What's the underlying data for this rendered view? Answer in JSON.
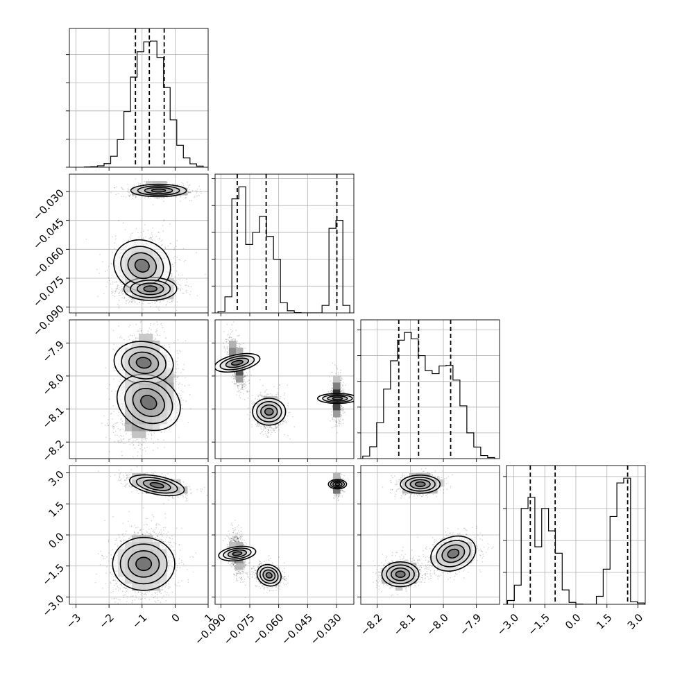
{
  "chart_data": {
    "type": "corner",
    "grid": true,
    "ndim": 4,
    "parameters": [
      {
        "range": [
          -3.2,
          1.0
        ],
        "ticks": [
          -3,
          -2,
          -1,
          0,
          1
        ],
        "tick_labels": [
          "−3",
          "−2",
          "−1",
          "0",
          "1"
        ],
        "quantiles": [
          -1.2,
          -0.78,
          -0.33
        ],
        "histogram": {
          "type": "step",
          "bins": [
            -2.75,
            -2.55,
            -2.35,
            -2.15,
            -1.95,
            -1.75,
            -1.55,
            -1.35,
            -1.15,
            -0.95,
            -0.75,
            -0.55,
            -0.35,
            -0.15,
            0.05,
            0.25,
            0.45,
            0.65,
            0.85
          ],
          "counts": [
            1,
            2,
            5,
            13,
            39,
            98,
            198,
            320,
            410,
            445,
            448,
            390,
            283,
            168,
            78,
            33,
            12,
            4,
            1
          ]
        }
      },
      {
        "range": [
          -0.093,
          -0.021
        ],
        "ticks": [
          -0.09,
          -0.075,
          -0.06,
          -0.045,
          -0.03
        ],
        "tick_labels": [
          "−0.090",
          "−0.075",
          "−0.060",
          "−0.045",
          "−0.030"
        ],
        "quantiles": [
          -0.0815,
          -0.0665,
          -0.0298
        ],
        "histogram": {
          "type": "step",
          "bins": [
            -0.0915,
            -0.0879,
            -0.0843,
            -0.0807,
            -0.0771,
            -0.0735,
            -0.0699,
            -0.0663,
            -0.0627,
            -0.0591,
            -0.0555,
            -0.0519,
            -0.0483,
            -0.0447,
            -0.0411,
            -0.0375,
            -0.0339,
            -0.0303,
            -0.0267,
            -0.0231
          ],
          "counts": [
            5,
            60,
            425,
            470,
            255,
            300,
            360,
            285,
            200,
            38,
            8,
            1,
            0,
            0,
            0,
            28,
            315,
            345,
            28
          ]
        }
      },
      {
        "range": [
          -8.25,
          -7.83
        ],
        "ticks": [
          -8.2,
          -8.1,
          -8.0,
          -7.9
        ],
        "tick_labels": [
          "−8.2",
          "−8.1",
          "−8.0",
          "−7.9"
        ],
        "quantiles": [
          -8.135,
          -8.075,
          -7.978
        ],
        "histogram": {
          "type": "step",
          "bins": [
            -8.244,
            -8.223,
            -8.202,
            -8.181,
            -8.16,
            -8.139,
            -8.118,
            -8.097,
            -8.076,
            -8.055,
            -8.034,
            -8.013,
            -7.992,
            -7.971,
            -7.95,
            -7.929,
            -7.908,
            -7.887,
            -7.866,
            -7.845
          ],
          "counts": [
            10,
            46,
            140,
            270,
            380,
            460,
            490,
            465,
            400,
            342,
            330,
            360,
            362,
            305,
            205,
            100,
            45,
            12,
            4
          ]
        }
      },
      {
        "range": [
          -3.35,
          3.35
        ],
        "ticks": [
          -3.0,
          -1.5,
          0.0,
          1.5,
          3.0
        ],
        "tick_labels": [
          "−3.0",
          "−1.5",
          "0.0",
          "1.5",
          "3.0"
        ],
        "quantiles": [
          -2.2,
          -1.0,
          2.5
        ],
        "histogram": {
          "type": "step",
          "bins": [
            -3.3,
            -2.97,
            -2.64,
            -2.31,
            -1.98,
            -1.65,
            -1.32,
            -0.99,
            -0.66,
            -0.33,
            0.0,
            0.33,
            0.66,
            0.99,
            1.32,
            1.65,
            1.98,
            2.31,
            2.64,
            2.97,
            3.3
          ],
          "counts": [
            12,
            60,
            300,
            335,
            180,
            300,
            230,
            160,
            45,
            6,
            1,
            0,
            0,
            25,
            110,
            275,
            380,
            395,
            8,
            4
          ]
        }
      }
    ],
    "pairs": [
      {
        "row": 1,
        "col": 0,
        "clusters": [
          {
            "mean": [
              -0.5,
              -0.0295
            ],
            "sd": [
              0.42,
              0.0016
            ],
            "rho": 0.0,
            "weight": 0.3
          },
          {
            "mean": [
              -1.0,
              -0.0685
            ],
            "sd": [
              0.38,
              0.0075
            ],
            "rho": 0.15,
            "weight": 0.32
          },
          {
            "mean": [
              -0.75,
              -0.0805
            ],
            "sd": [
              0.4,
              0.003
            ],
            "rho": 0.0,
            "weight": 0.38
          }
        ]
      },
      {
        "row": 2,
        "col": 0,
        "clusters": [
          {
            "mean": [
              -0.95,
              -7.96
            ],
            "sd": [
              0.32,
              0.045
            ],
            "rho": 0.1,
            "weight": 0.32
          },
          {
            "mean": [
              -0.8,
              -8.08
            ],
            "sd": [
              0.4,
              0.05
            ],
            "rho": 0.35,
            "weight": 0.68
          }
        ]
      },
      {
        "row": 2,
        "col": 1,
        "clusters": [
          {
            "mean": [
              -0.0815,
              -7.96
            ],
            "sd": [
              0.0021,
              0.035
            ],
            "rho": -0.55,
            "weight": 0.38
          },
          {
            "mean": [
              -0.065,
              -8.108
            ],
            "sd": [
              0.0035,
              0.025
            ],
            "rho": 0.0,
            "weight": 0.32
          },
          {
            "mean": [
              -0.0295,
              -8.068
            ],
            "sd": [
              0.0013,
              0.03
            ],
            "rho": 0.0,
            "weight": 0.3
          }
        ]
      },
      {
        "row": 3,
        "col": 0,
        "clusters": [
          {
            "mean": [
              -0.55,
              2.4
            ],
            "sd": [
              0.42,
              0.22
            ],
            "rho": -0.55,
            "weight": 0.3
          },
          {
            "mean": [
              -0.95,
              -1.4
            ],
            "sd": [
              0.4,
              0.75
            ],
            "rho": 0.0,
            "weight": 0.7
          }
        ]
      },
      {
        "row": 3,
        "col": 1,
        "clusters": [
          {
            "mean": [
              -0.0295,
              2.45
            ],
            "sd": [
              0.0012,
              0.22
            ],
            "rho": 0.0,
            "weight": 0.3
          },
          {
            "mean": [
              -0.0815,
              -0.9
            ],
            "sd": [
              0.0018,
              0.45
            ],
            "rho": -0.3,
            "weight": 0.38
          },
          {
            "mean": [
              -0.065,
              -1.95
            ],
            "sd": [
              0.0032,
              0.25
            ],
            "rho": -0.2,
            "weight": 0.32
          }
        ]
      },
      {
        "row": 3,
        "col": 2,
        "clusters": [
          {
            "mean": [
              -8.07,
              2.45
            ],
            "sd": [
              0.03,
              0.22
            ],
            "rho": 0.0,
            "weight": 0.3
          },
          {
            "mean": [
              -8.13,
              -1.9
            ],
            "sd": [
              0.028,
              0.3
            ],
            "rho": 0.0,
            "weight": 0.38
          },
          {
            "mean": [
              -7.97,
              -0.9
            ],
            "sd": [
              0.035,
              0.4
            ],
            "rho": 0.3,
            "weight": 0.32
          }
        ]
      }
    ]
  },
  "colors": {
    "line": "#000000",
    "grid": "#b0b0b0",
    "background": "#ffffff",
    "density_light": "#f4f4f4",
    "density_dark": "#000000",
    "points": "#000000"
  }
}
